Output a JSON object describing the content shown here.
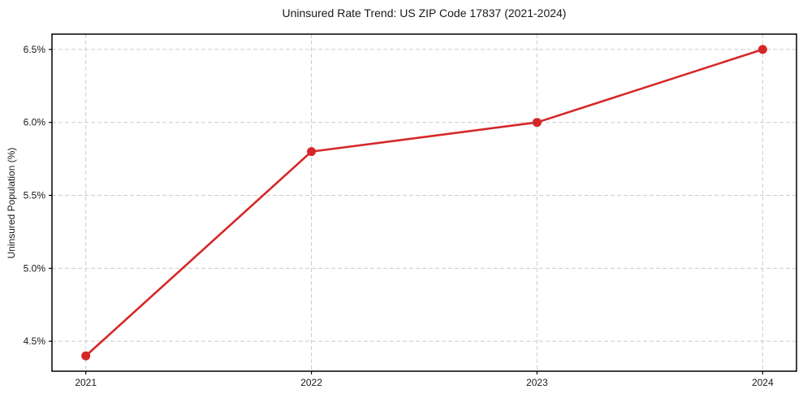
{
  "page": {
    "background": "#ffffff"
  },
  "chart_data": {
    "type": "line",
    "title": "Uninsured Rate Trend: US ZIP Code 17837 (2021-2024)",
    "xlabel": "",
    "ylabel": "Uninsured Population (%)",
    "x": [
      2021,
      2022,
      2023,
      2024
    ],
    "x_tick_labels": [
      "2021",
      "2022",
      "2023",
      "2024"
    ],
    "series": [
      {
        "name": "uninsured-rate",
        "values": [
          4.4,
          5.8,
          6.0,
          6.5
        ],
        "color": "#d62728",
        "marker": "circle",
        "line_width": 2.6,
        "marker_radius": 5.5
      }
    ],
    "y_tick_values": [
      4.5,
      5.0,
      5.5,
      6.0,
      6.5
    ],
    "y_tick_labels": [
      "4.5%",
      "5.0%",
      "5.5%",
      "6.0%",
      "6.5%"
    ],
    "xlim": [
      2020.85,
      2024.15
    ],
    "ylim": [
      4.295,
      6.605
    ],
    "grid": {
      "show": true,
      "style": "dashed",
      "color": "#cccccc"
    },
    "legend": {
      "show": false
    },
    "spine_color": "#000000",
    "text_color": "#1a1a1a"
  }
}
